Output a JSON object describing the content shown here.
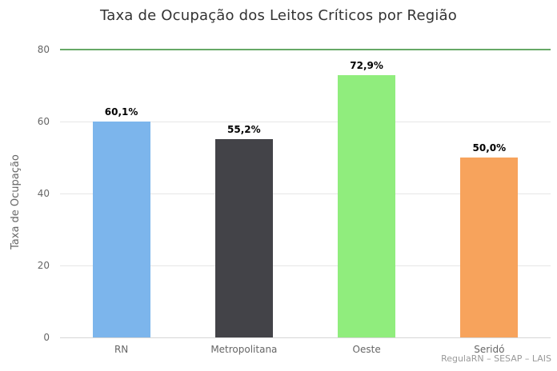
{
  "title": "Taxa de Ocupação dos Leitos Críticos por Região",
  "credits": "RegulaRN – SESAP – LAIS",
  "chart_data": {
    "type": "bar",
    "title": "Taxa de Ocupação dos Leitos Críticos por Região",
    "ylabel": "Taxa de Ocupação",
    "xlabel": "",
    "categories": [
      "RN",
      "Metropolitana",
      "Oeste",
      "Seridó"
    ],
    "values": [
      60.1,
      55.2,
      72.9,
      50.0
    ],
    "value_labels": [
      "60,1%",
      "55,2%",
      "72,9%",
      "50,0%"
    ],
    "bar_colors": [
      "#7cb5ec",
      "#434348",
      "#90ed7d",
      "#f7a35c"
    ],
    "ylim": [
      0,
      80
    ],
    "yticks": [
      0,
      20,
      40,
      60,
      80
    ],
    "grid": true,
    "legend": "none",
    "plot_line": {
      "value": 80,
      "color": "#67a867",
      "width": 2
    },
    "ui_colors": {
      "grid_line": "#e6e6e6",
      "axis_line": "#d6d6d6",
      "tick_text": "#666666",
      "value_label_text": "#000000",
      "title_text": "#333333",
      "credits_text": "#999999",
      "background": "#ffffff"
    }
  }
}
